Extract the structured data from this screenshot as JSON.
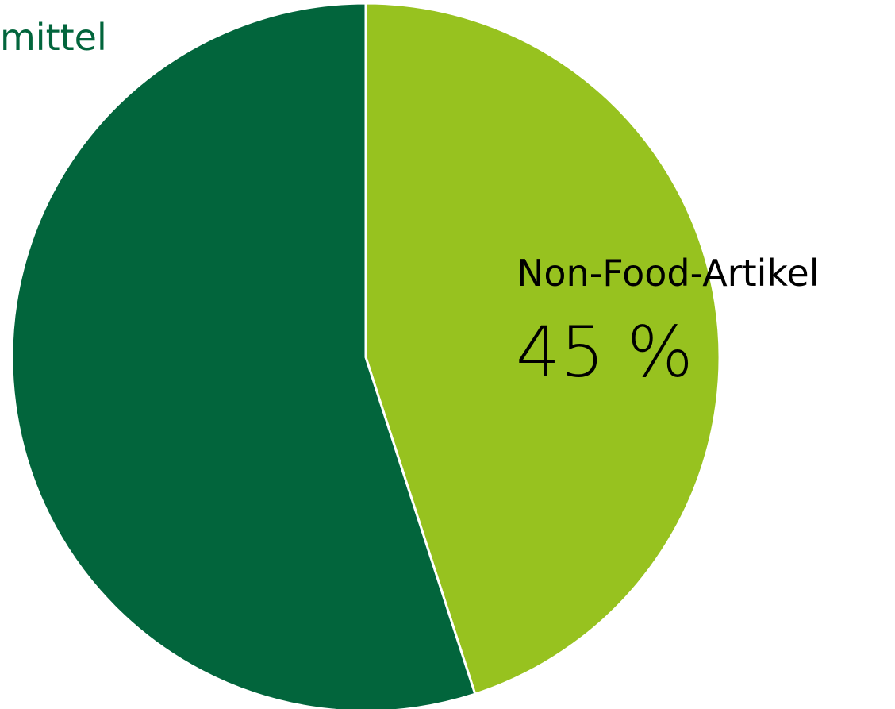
{
  "chart_data": {
    "type": "pie",
    "start_angle_deg": 0,
    "direction": "clockwise",
    "slices": [
      {
        "label": "Non-Food-Artikel",
        "value": 45,
        "value_text": "45 %",
        "color": "#97c21f",
        "label_color": "#000000"
      },
      {
        "label": "mittel",
        "value": 55,
        "value_text": "",
        "color": "#02653c",
        "label_color": "#02653c"
      }
    ],
    "slice_border_color": "#ffffff"
  }
}
